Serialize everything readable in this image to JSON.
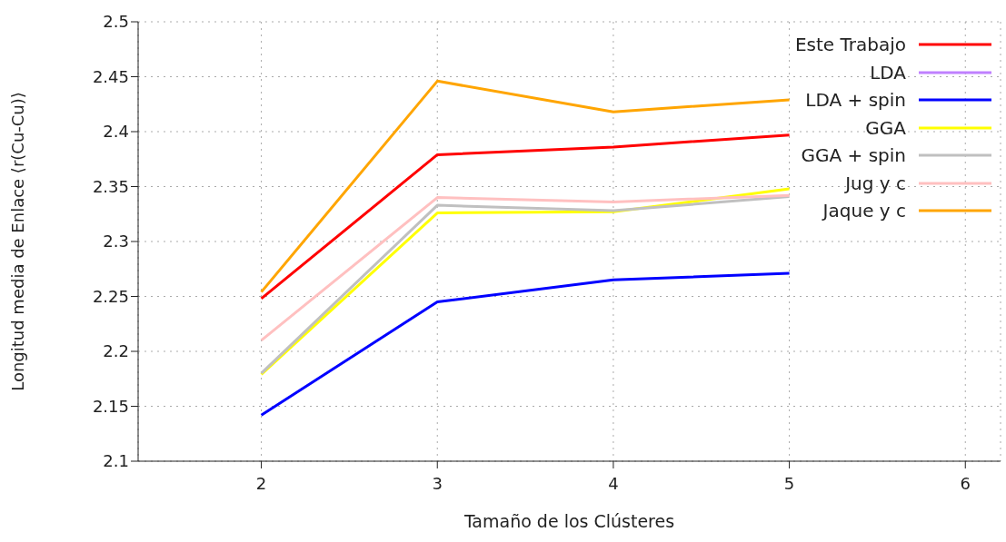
{
  "chart_data": {
    "type": "line",
    "xlabel": "Tamaño de los Clústeres",
    "ylabel": "Longitud media de Enlace ⟨r(Cu-Cu)⟩",
    "x": [
      2,
      3,
      4,
      5
    ],
    "series": [
      {
        "name": "Este Trabajo",
        "color": "#ff0000",
        "values": [
          2.248,
          2.379,
          2.386,
          2.397
        ]
      },
      {
        "name": "LDA",
        "color": "#c080ff",
        "values": [
          null,
          null,
          null,
          null
        ]
      },
      {
        "name": "LDA + spin",
        "color": "#0000ff",
        "values": [
          2.142,
          2.245,
          2.265,
          2.271
        ]
      },
      {
        "name": "GGA",
        "color": "#ffff00",
        "values": [
          2.179,
          2.326,
          2.327,
          2.348
        ]
      },
      {
        "name": "GGA + spin",
        "color": "#c0c0c0",
        "values": [
          2.18,
          2.333,
          2.328,
          2.341
        ]
      },
      {
        "name": "Jug y c",
        "color": "#ffc0c0",
        "values": [
          2.21,
          2.34,
          2.336,
          2.342
        ]
      },
      {
        "name": "Jaque y c",
        "color": "#ffa500",
        "values": [
          2.254,
          2.446,
          2.418,
          2.429
        ]
      }
    ],
    "xlim": [
      1.3,
      6.2
    ],
    "xticks": [
      2,
      3,
      4,
      5,
      6
    ],
    "ylim": [
      2.1,
      2.5
    ],
    "yticks": [
      2.1,
      2.15,
      2.2,
      2.25,
      2.3,
      2.35,
      2.4,
      2.45,
      2.5
    ],
    "grid": true,
    "legend": "top right",
    "marker": "none",
    "line_style": "solid"
  }
}
